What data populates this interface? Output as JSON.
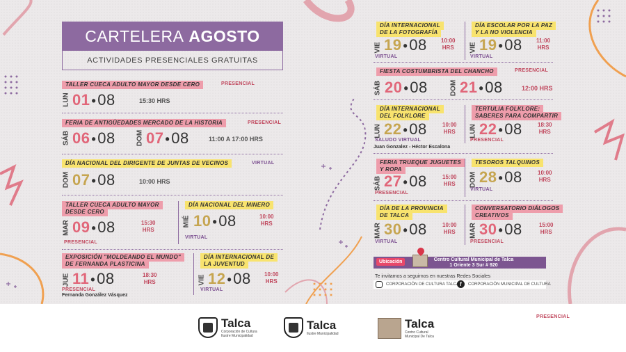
{
  "header": {
    "title_a": "CARTELERA",
    "title_b": "AGOSTO",
    "subtitle": "ACTIVIDADES PRESENCIALES GRATUITAS"
  },
  "events": {
    "e1": {
      "title": "TALLER CUECA ADULTO MAYOR DESDE CERO",
      "mode": "PRESENCIAL",
      "dow": "LUN",
      "day": "01",
      "month": "08",
      "time": "15:30 HRS"
    },
    "e2": {
      "title": "FERIA DE ANTIGÜEDADES MERCADO DE LA HISTORIA",
      "mode": "PRESENCIAL",
      "dow1": "SÁB",
      "day1": "06",
      "dow2": "DOM",
      "day2": "07",
      "month": "08",
      "time": "11:00 A 17:00 HRS"
    },
    "e3": {
      "title": "DÍA  NACIONAL DEL DIRIGENTE DE JUNTAS DE VECINOS",
      "mode": "VIRTUAL",
      "dow": "DOM",
      "day": "07",
      "month": "08",
      "time": "10:00 HRS"
    },
    "e4": {
      "title_l1": "TALLER CUECA ADULTO MAYOR",
      "title_l2": "DESDE CERO",
      "mode": "PRESENCIAL",
      "dow": "MAR",
      "day": "09",
      "month": "08",
      "time_a": "15:30",
      "time_b": "HRS"
    },
    "e5": {
      "title": "DÍA NACIONAL DEL MINERO",
      "mode": "VIRTUAL",
      "dow": "MIÉ",
      "day": "10",
      "month": "08",
      "time_a": "10:00",
      "time_b": "HRS"
    },
    "e6": {
      "title_l1": "EXPOSICIÓN \"MOLDEANDO EL MUNDO\"",
      "title_l2": "DE FERNANDA PLASTICINA",
      "mode": "PRESENCIAL",
      "dow": "JUE",
      "day": "11",
      "month": "08",
      "time_a": "18:30",
      "time_b": "HRS",
      "note": "Fernanda González Vásquez"
    },
    "e7": {
      "title_l1": "DÍA INTERNACIONAL DE",
      "title_l2": "LA JUVENTUD",
      "mode": "VIRTUAL",
      "dow": "VIE",
      "day": "12",
      "month": "08",
      "time_a": "10:00",
      "time_b": "HRS"
    },
    "e8": {
      "title_l1": "DÍA INTERNACIONAL",
      "title_l2": "DE LA FOTOGRAFÍA",
      "mode": "VIRTUAL",
      "dow": "VIE",
      "day": "19",
      "month": "08",
      "time_a": "10:00",
      "time_b": "HRS"
    },
    "e9": {
      "title_l1": "DÍA ESCOLAR POR LA PAZ",
      "title_l2": "Y LA NO VIOLENCIA",
      "mode": "VIRTUAL",
      "dow": "VIE",
      "day": "19",
      "month": "08",
      "time_a": "11:00",
      "time_b": "HRS"
    },
    "e10": {
      "title": "FIESTA COSTUMBRISTA DEL CHANCHO",
      "mode": "PRESENCIAL",
      "dow1": "SÁB",
      "day1": "20",
      "dow2": "DOM",
      "day2": "21",
      "month": "08",
      "time": "12:00 HRS"
    },
    "e11": {
      "title_l1": "DÍA INTERNACIONAL",
      "title_l2": "DEL FOLKLORE",
      "mode": "SALUDO VIRTUAL",
      "dow": "LUN",
      "day": "22",
      "month": "08",
      "time_a": "10:00",
      "time_b": "HRS",
      "note": "Juan Gonzalez - Héctor Escalona"
    },
    "e12": {
      "title_l1": "TERTULIA FOLKLORE:",
      "title_l2": "SABERES PARA COMPARTIR",
      "mode": "PRESENCIAL",
      "dow": "LUN",
      "day": "22",
      "month": "08",
      "time_a": "18:30",
      "time_b": "HRS"
    },
    "e13": {
      "title_l1": "FERIA TRUEQUE JUGUETES",
      "title_l2": "Y ROPA",
      "mode": "PRESENCIAL",
      "dow": "SÁB",
      "day": "27",
      "month": "08",
      "time_a": "15:00",
      "time_b": "HRS"
    },
    "e14": {
      "title": "TESOROS TALQUINOS",
      "mode": "VIRTUAL",
      "dow": "DOM",
      "day": "28",
      "month": "08",
      "time_a": "10:00",
      "time_b": "HRS"
    },
    "e15": {
      "title_l1": "DÍA DE LA PROVINCIA",
      "title_l2": "DE TALCA",
      "mode": "VIRTUAL",
      "dow": "MAR",
      "day": "30",
      "month": "08",
      "time_a": "10:00",
      "time_b": "HRS"
    },
    "e16": {
      "title_l1": "CONVERSATORIO DIÁLOGOS",
      "title_l2": "CREATIVOS",
      "mode": "PRESENCIAL",
      "dow": "MAR",
      "day": "30",
      "month": "08",
      "time_a": "15:00",
      "time_b": "HRS"
    }
  },
  "location": {
    "tag": "Ubicación",
    "line1": "Centro Cultural Municipal de Talca",
    "line2": "1 Oriente 3 Sur # 920"
  },
  "social": {
    "invite": "Te invitamos a seguirnos en nuestras Redes Sociales",
    "instagram": "CORPORACIÓN DE CULTURA TALCA",
    "facebook": "CORPORACIÓN MUNICIPAL DE CULTURA"
  },
  "footer": {
    "logo1": {
      "title": "Talca",
      "sub1": "Corporación de Cultura",
      "sub2": "Ilustre Municipalidad"
    },
    "logo2": {
      "title": "Talca",
      "sub1": "Ilustre Municipalidad"
    },
    "logo3": {
      "title": "Talca",
      "sub1": "Centro Cultural",
      "sub2": "Municipal De Talca"
    },
    "mode": "PRESENCIAL"
  },
  "colors": {
    "purple": "#8d6aa0",
    "pink": "#ee9dab",
    "yellow": "#f8e36e",
    "coral": "#e16679",
    "gold": "#c6a550"
  }
}
